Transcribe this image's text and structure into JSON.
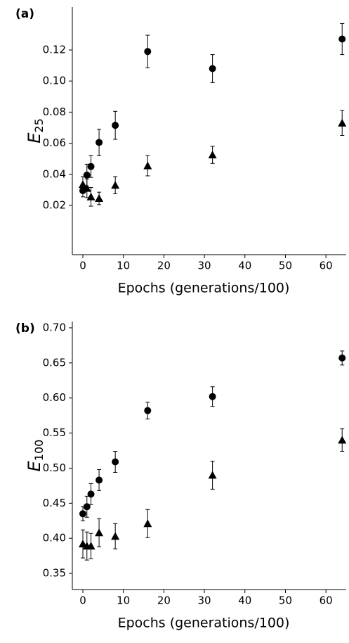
{
  "chart_data": [
    {
      "type": "scatter",
      "panel_label": "(a)",
      "x_label": "Epochs (generations/100)",
      "y_label": "E",
      "y_label_sub": "25",
      "x": [
        0,
        1,
        2,
        4,
        8,
        16,
        32,
        64
      ],
      "xlim": [
        -2.6,
        65
      ],
      "xticks": [
        0,
        10,
        20,
        30,
        40,
        50,
        60
      ],
      "ylim": [
        -0.0117,
        0.1476
      ],
      "yticks": [
        0.02,
        0.04,
        0.06,
        0.08,
        {
          "value": 0.1,
          "label": "0.10"
        },
        0.12
      ],
      "series": [
        {
          "marker": "circle",
          "color": "#000000",
          "values": [
            0.0295,
            0.0395,
            0.045,
            0.0605,
            0.0715,
            0.119,
            0.108,
            0.127
          ],
          "errors": [
            0.004,
            0.007,
            0.007,
            0.0085,
            0.009,
            0.0105,
            0.009,
            0.01
          ]
        },
        {
          "marker": "triangle",
          "color": "#000000",
          "values": [
            0.0335,
            0.031,
            0.0255,
            0.0245,
            0.033,
            0.0455,
            0.0525,
            0.073
          ],
          "errors": [
            0.005,
            0.006,
            0.006,
            0.004,
            0.0055,
            0.0065,
            0.0055,
            0.008
          ]
        }
      ]
    },
    {
      "type": "scatter",
      "panel_label": "(b)",
      "x_label": "Epochs (generations/100)",
      "y_label": "E",
      "y_label_sub": "100",
      "x": [
        0,
        1,
        2,
        4,
        8,
        16,
        32,
        64
      ],
      "xlim": [
        -2.6,
        65
      ],
      "xticks": [
        0,
        10,
        20,
        30,
        40,
        50,
        60
      ],
      "ylim": [
        0.327,
        0.709
      ],
      "yticks": [
        0.35,
        {
          "value": 0.4,
          "label": "0.40"
        },
        0.45,
        {
          "value": 0.5,
          "label": "0.50"
        },
        0.55,
        {
          "value": 0.6,
          "label": "0.60"
        },
        0.65,
        {
          "value": 0.7,
          "label": "0.70"
        }
      ],
      "series": [
        {
          "marker": "circle",
          "color": "#000000",
          "values": [
            0.435,
            0.445,
            0.463,
            0.483,
            0.509,
            0.582,
            0.602,
            0.657
          ],
          "errors": [
            0.01,
            0.015,
            0.015,
            0.015,
            0.015,
            0.012,
            0.014,
            0.01
          ]
        },
        {
          "marker": "triangle",
          "color": "#000000",
          "values": [
            0.392,
            0.389,
            0.389,
            0.408,
            0.403,
            0.421,
            0.49,
            0.54
          ],
          "errors": [
            0.02,
            0.02,
            0.018,
            0.02,
            0.018,
            0.02,
            0.02,
            0.016
          ]
        }
      ]
    }
  ]
}
